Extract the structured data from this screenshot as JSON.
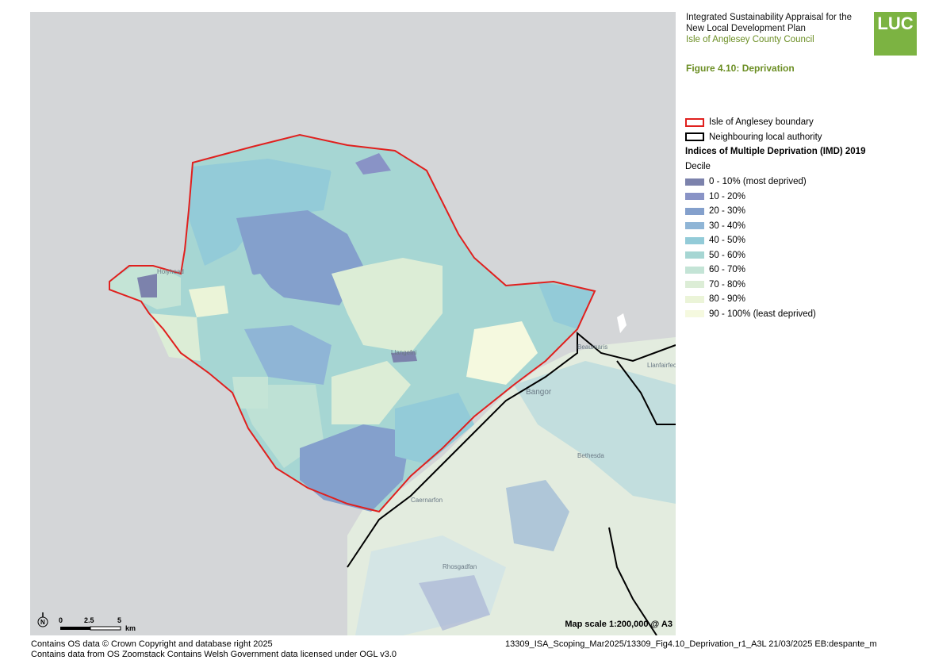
{
  "header": {
    "title_line1": "Integrated Sustainability Appraisal for the",
    "title_line2": "New Local Development Plan",
    "client": "Isle of Anglesey County Council",
    "logo_text": "LUC",
    "logo_color": "#7cb342"
  },
  "figure_title": "Figure 4.10: Deprivation",
  "legend": {
    "boundary_label": "Isle of Anglesey boundary",
    "boundary_color": "#e0201e",
    "neighbour_label": "Neighbouring local authority",
    "neighbour_color": "#000000",
    "imd_heading": "Indices of Multiple Deprivation (IMD) 2019",
    "decile_label": "Decile",
    "deciles": [
      {
        "label": "0 - 10% (most deprived)",
        "color": "#7c82ac"
      },
      {
        "label": "10 - 20%",
        "color": "#8993c6"
      },
      {
        "label": "20 - 30%",
        "color": "#84a0cc"
      },
      {
        "label": "30 - 40%",
        "color": "#8fb5d6"
      },
      {
        "label": "40 - 50%",
        "color": "#93cbd8"
      },
      {
        "label": "50 - 60%",
        "color": "#a6d6d3"
      },
      {
        "label": "60 - 70%",
        "color": "#c4e4d6"
      },
      {
        "label": "70 - 80%",
        "color": "#dcedd6"
      },
      {
        "label": "80 - 90%",
        "color": "#ebf4d8"
      },
      {
        "label": "90 - 100% (least deprived)",
        "color": "#f5f9df"
      }
    ]
  },
  "map": {
    "place_labels": [
      "Holyhead",
      "Llangefni",
      "Beaumaris",
      "Llanfairfechan",
      "Bangor",
      "Bethesda",
      "Caernarfon",
      "Rhosgadfan"
    ],
    "scale_text": "Map scale 1:200,000 @ A3",
    "scalebar_ticks": [
      "0",
      "2.5",
      "5"
    ],
    "scalebar_unit": "km",
    "north_label": "N"
  },
  "footer": {
    "left_line1": "Contains OS data © Crown Copyright and database right 2025",
    "left_line2": "Contains data from OS Zoomstack Contains Welsh Government data licensed under OGL v3.0",
    "right_line1": "13309_ISA_Scoping_Mar2025/13309_Fig4.10_Deprivation_r1_A3L 21/03/2025 EB:despante_m"
  }
}
